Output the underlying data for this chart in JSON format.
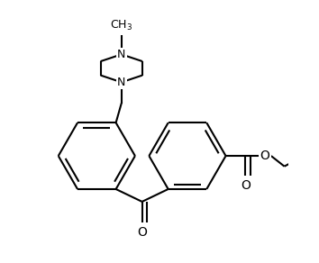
{
  "background_color": "#ffffff",
  "line_color": "#000000",
  "line_width": 1.5,
  "font_size": 9,
  "fig_width": 3.54,
  "fig_height": 2.92,
  "xlim": [
    -0.1,
    3.6
  ],
  "ylim": [
    -0.5,
    3.2
  ]
}
